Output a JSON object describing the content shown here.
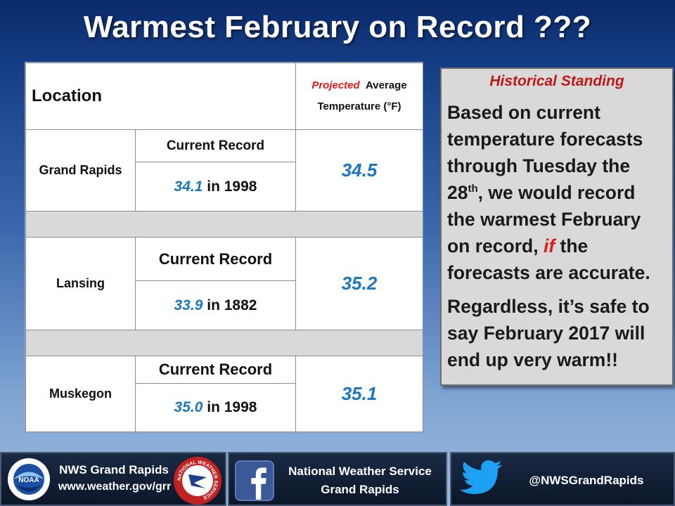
{
  "title": "Warmest February on Record ???",
  "table": {
    "header_location": "Location",
    "header_projected_red": "Projected",
    "header_projected_rest": "Average",
    "header_temperature": "Temperature (°F)",
    "record_label": "Current Record",
    "in_word": "in",
    "rows": [
      {
        "location": "Grand Rapids",
        "record_value": "34.1",
        "record_year": "1998",
        "projected": "34.5"
      },
      {
        "location": "Lansing",
        "record_value": "33.9",
        "record_year": "1882",
        "projected": "35.2"
      },
      {
        "location": "Muskegon",
        "record_value": "35.0",
        "record_year": "1998",
        "projected": "35.1"
      }
    ]
  },
  "side_box": {
    "heading": "Historical Standing",
    "para1_a": "Based on current temperature forecasts through Tuesday the 28",
    "para1_sup": "th",
    "para1_b": ", we would record the warmest February on record,",
    "para1_if": "if",
    "para1_c": "the forecasts are accurate.",
    "para2": "Regardless, it’s safe to say February 2017 will end up very warm!!"
  },
  "footer": {
    "left_line1": "NWS Grand Rapids",
    "left_line2": "www.weather.gov/grr",
    "mid_line1": "National Weather Service",
    "mid_line2": "Grand Rapids",
    "right_handle": "@NWSGrandRapids",
    "noaa_badge": "NOAA",
    "nws_badge": "NATIONAL WEATHER SERVICE"
  },
  "colors": {
    "accent_blue": "#1a78c2",
    "accent_red": "#e21a1a",
    "facebook_blue": "#3b5998",
    "twitter_blue": "#1da1f2"
  },
  "icons": [
    "noaa-logo-icon",
    "nws-logo-icon",
    "facebook-icon",
    "twitter-bird-icon"
  ]
}
